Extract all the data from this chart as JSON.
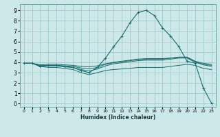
{
  "xlabel": "Humidex (Indice chaleur)",
  "bg_color": "#cce8e8",
  "grid_color": "#a0c8c8",
  "line_color": "#1a6b6b",
  "xlim": [
    -0.5,
    23.5
  ],
  "ylim": [
    -0.3,
    9.6
  ],
  "xticks": [
    0,
    1,
    2,
    3,
    4,
    5,
    6,
    7,
    8,
    9,
    10,
    11,
    12,
    13,
    14,
    15,
    16,
    17,
    18,
    19,
    20,
    21,
    22,
    23
  ],
  "yticks": [
    0,
    1,
    2,
    3,
    4,
    5,
    6,
    7,
    8,
    9
  ],
  "lines": [
    {
      "x": [
        0,
        1,
        2,
        3,
        4,
        5,
        6,
        7,
        8,
        9,
        10,
        11,
        12,
        13,
        14,
        15,
        16,
        17,
        18,
        19,
        20,
        21,
        22,
        23
      ],
      "y": [
        3.9,
        3.9,
        3.6,
        3.7,
        3.7,
        3.6,
        3.5,
        3.2,
        3.0,
        3.5,
        4.4,
        5.5,
        6.5,
        7.8,
        8.8,
        9.0,
        8.5,
        7.3,
        6.5,
        5.5,
        4.1,
        3.9,
        1.5,
        0.05
      ],
      "marker": true
    },
    {
      "x": [
        0,
        1,
        2,
        3,
        4,
        5,
        6,
        7,
        8,
        9,
        10,
        11,
        12,
        13,
        14,
        15,
        16,
        17,
        18,
        19,
        20,
        21,
        22,
        23
      ],
      "y": [
        3.9,
        3.9,
        3.75,
        3.8,
        3.8,
        3.75,
        3.7,
        3.6,
        3.55,
        3.65,
        3.85,
        4.0,
        4.1,
        4.2,
        4.3,
        4.35,
        4.35,
        4.35,
        4.4,
        4.5,
        4.5,
        4.1,
        3.9,
        3.8
      ],
      "marker": false
    },
    {
      "x": [
        0,
        1,
        2,
        3,
        4,
        5,
        6,
        7,
        8,
        9,
        10,
        11,
        12,
        13,
        14,
        15,
        16,
        17,
        18,
        19,
        20,
        21,
        22,
        23
      ],
      "y": [
        3.9,
        3.9,
        3.7,
        3.7,
        3.7,
        3.65,
        3.6,
        3.45,
        3.35,
        3.5,
        3.8,
        3.95,
        4.05,
        4.15,
        4.25,
        4.3,
        4.3,
        4.3,
        4.4,
        4.45,
        4.45,
        4.05,
        3.8,
        3.7
      ],
      "marker": false
    },
    {
      "x": [
        0,
        1,
        2,
        3,
        4,
        5,
        6,
        7,
        8,
        9,
        10,
        11,
        12,
        13,
        14,
        15,
        16,
        17,
        18,
        19,
        20,
        21,
        22,
        23
      ],
      "y": [
        3.9,
        3.9,
        3.65,
        3.65,
        3.65,
        3.55,
        3.5,
        3.3,
        3.15,
        3.35,
        3.65,
        3.85,
        3.95,
        4.05,
        4.15,
        4.2,
        4.2,
        4.2,
        4.3,
        4.4,
        4.4,
        4.0,
        3.75,
        3.6
      ],
      "marker": false
    },
    {
      "x": [
        0,
        1,
        2,
        3,
        4,
        5,
        6,
        7,
        8,
        9,
        10,
        11,
        12,
        13,
        14,
        15,
        16,
        17,
        18,
        19,
        20,
        21,
        22,
        23
      ],
      "y": [
        3.9,
        3.9,
        3.6,
        3.5,
        3.5,
        3.4,
        3.3,
        3.0,
        2.8,
        3.0,
        3.2,
        3.3,
        3.35,
        3.4,
        3.5,
        3.5,
        3.5,
        3.5,
        3.6,
        3.7,
        3.8,
        3.7,
        3.4,
        3.3
      ],
      "marker": false
    }
  ]
}
